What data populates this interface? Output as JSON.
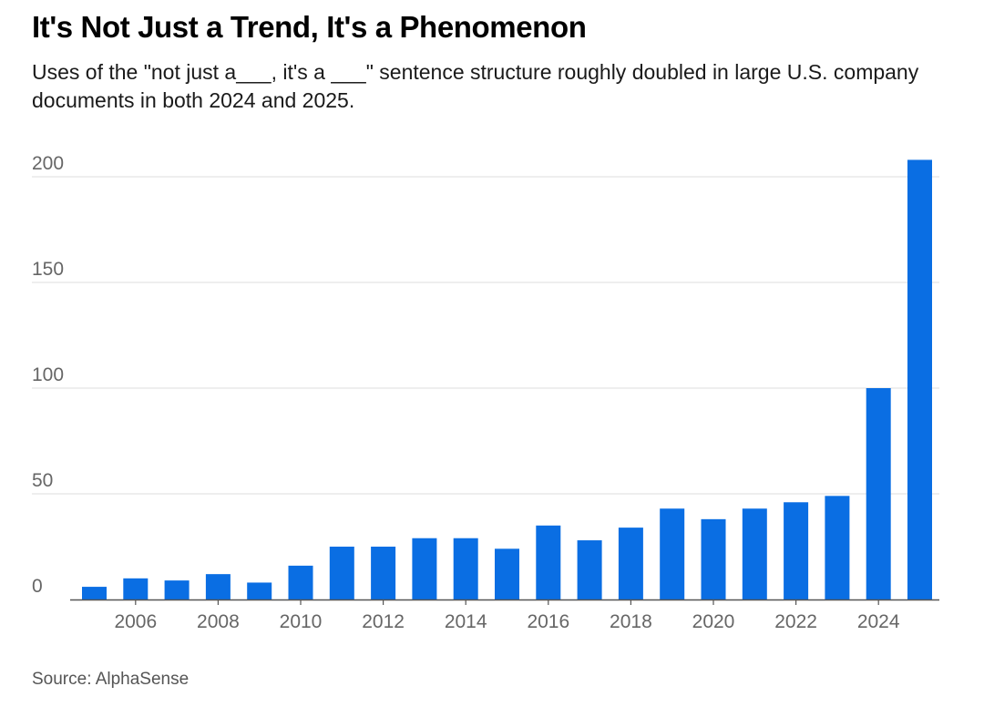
{
  "header": {
    "title": "It's Not Just a Trend, It's a Phenomenon",
    "subtitle": "Uses of the \"not just a___, it's a ___\" sentence structure roughly doubled in large U.S. company documents in both 2024 and 2025."
  },
  "footer": {
    "source": "Source: AlphaSense"
  },
  "colors": {
    "bar": "#0a6ee3",
    "grid": "#dddddd",
    "axis": "#555555",
    "tick_text": "#666666"
  },
  "chart_data": {
    "type": "bar",
    "categories": [
      "2005",
      "2006",
      "2007",
      "2008",
      "2009",
      "2010",
      "2011",
      "2012",
      "2013",
      "2014",
      "2015",
      "2016",
      "2017",
      "2018",
      "2019",
      "2020",
      "2021",
      "2022",
      "2023",
      "2024",
      "2025"
    ],
    "values": [
      6,
      10,
      9,
      12,
      8,
      16,
      25,
      25,
      29,
      29,
      24,
      35,
      28,
      34,
      43,
      38,
      43,
      46,
      49,
      100,
      208
    ],
    "x_tick_labels": [
      "2006",
      "2008",
      "2010",
      "2012",
      "2014",
      "2016",
      "2018",
      "2020",
      "2022",
      "2024"
    ],
    "y_tick_labels": [
      "0",
      "50",
      "100",
      "150",
      "200"
    ],
    "ylim": [
      0,
      208
    ],
    "grid": true,
    "legend": "none",
    "title": "It's Not Just a Trend, It's a Phenomenon",
    "xlabel": "",
    "ylabel": ""
  }
}
